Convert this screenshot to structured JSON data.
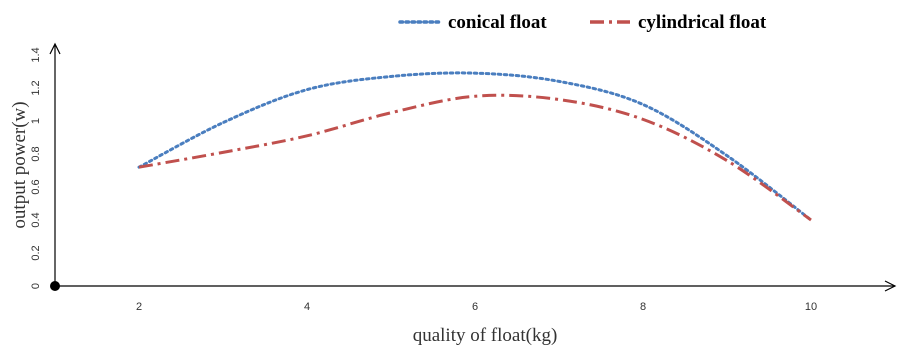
{
  "chart_data": {
    "type": "line",
    "title": "",
    "xlabel": "quality of float(kg)",
    "ylabel": "output power(w)",
    "x_ticks": [
      "2",
      "4",
      "6",
      "8",
      "10"
    ],
    "y_ticks": [
      "0",
      "0.2",
      "0.4",
      "0.6",
      "0.8",
      "1",
      "1.2",
      "1.4"
    ],
    "xlim": [
      1,
      11
    ],
    "ylim": [
      0,
      1.4
    ],
    "grid": false,
    "legend_position": "top",
    "series": [
      {
        "name": "conical float",
        "color": "#4a7ebf",
        "style": "dotted",
        "x": [
          2,
          3,
          4,
          5,
          6,
          7,
          8,
          9,
          10
        ],
        "y": [
          0.72,
          0.99,
          1.19,
          1.27,
          1.29,
          1.24,
          1.1,
          0.79,
          0.4
        ]
      },
      {
        "name": "cylindrical float",
        "color": "#c0504d",
        "style": "dash-dot",
        "x": [
          2,
          3,
          4,
          5,
          6,
          7,
          8,
          9,
          10
        ],
        "y": [
          0.72,
          0.81,
          0.91,
          1.05,
          1.15,
          1.13,
          1.01,
          0.76,
          0.4
        ]
      }
    ]
  }
}
